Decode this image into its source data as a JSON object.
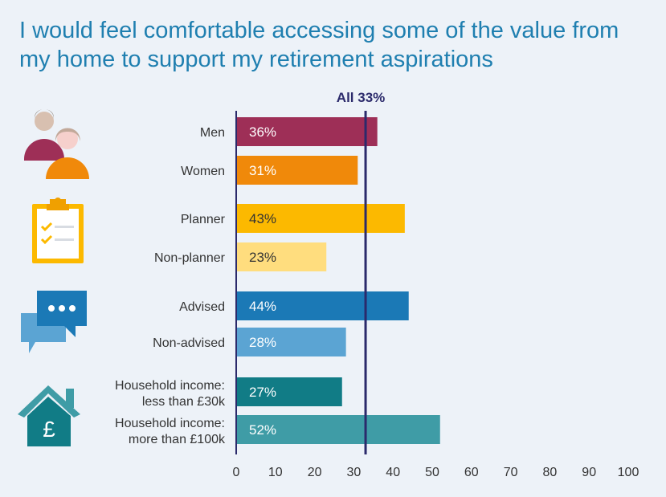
{
  "title": "I would feel comfortable accessing some of the value from my home to support my retirement aspirations",
  "chart_data": {
    "type": "bar",
    "orientation": "horizontal",
    "title": "I would feel comfortable accessing some of the value from my home to support my retirement aspirations",
    "xlim": [
      0,
      100
    ],
    "xticks": [
      0,
      10,
      20,
      30,
      40,
      50,
      60,
      70,
      80,
      90,
      100
    ],
    "reference_line": {
      "value": 33,
      "label": "All 33%",
      "color": "#2b2a6b"
    },
    "categories": [
      [
        "Men"
      ],
      [
        "Women"
      ],
      [
        "Planner"
      ],
      [
        "Non-planner"
      ],
      [
        "Advised"
      ],
      [
        "Non-advised"
      ],
      [
        "Household income:",
        "less than £30k"
      ],
      [
        "Household income:",
        "more than £100k"
      ]
    ],
    "values": [
      36,
      31,
      43,
      23,
      44,
      28,
      27,
      52
    ],
    "value_labels": [
      "36%",
      "31%",
      "43%",
      "23%",
      "44%",
      "28%",
      "27%",
      "52%"
    ],
    "colors": [
      "#9e2f57",
      "#f0890a",
      "#fcb900",
      "#ffdd7e",
      "#1b79b6",
      "#5ba4d3",
      "#117c86",
      "#3f9ca6"
    ],
    "label_colors": [
      "#ffffff",
      "#ffffff",
      "#333333",
      "#333333",
      "#ffffff",
      "#ffffff",
      "#ffffff",
      "#ffffff"
    ],
    "groups": [
      {
        "name": "gender",
        "icon": "people-icon",
        "members": [
          0,
          1
        ]
      },
      {
        "name": "planning",
        "icon": "clipboard-checklist-icon",
        "members": [
          2,
          3
        ]
      },
      {
        "name": "advice",
        "icon": "speech-bubbles-icon",
        "members": [
          4,
          5
        ]
      },
      {
        "name": "income",
        "icon": "house-pound-icon",
        "members": [
          6,
          7
        ]
      }
    ]
  }
}
